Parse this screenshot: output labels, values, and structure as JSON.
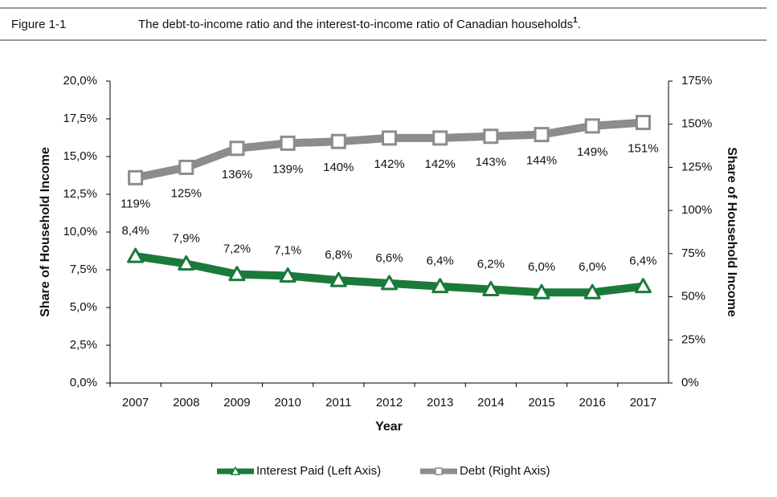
{
  "header": {
    "figure": "Figure 1-1",
    "title": "The debt-to-income ratio and the interest-to-income ratio of Canadian households",
    "footnote_mark": "1",
    "title_end": "."
  },
  "chart_data": {
    "type": "line",
    "categories": [
      "2007",
      "2008",
      "2009",
      "2010",
      "2011",
      "2012",
      "2013",
      "2014",
      "2015",
      "2016",
      "2017"
    ],
    "xlabel": "Year",
    "ylabel": "Share of Household Income",
    "y2label": "Share of Household Income",
    "ylim": [
      0,
      20
    ],
    "yticks": [
      {
        "value": 0,
        "label": "0,0%"
      },
      {
        "value": 2.5,
        "label": "2,5%"
      },
      {
        "value": 5,
        "label": "5,0%"
      },
      {
        "value": 7.5,
        "label": "7,5%"
      },
      {
        "value": 10,
        "label": "10,0%"
      },
      {
        "value": 12.5,
        "label": "12,5%"
      },
      {
        "value": 15,
        "label": "15,0%"
      },
      {
        "value": 17.5,
        "label": "17,5%"
      },
      {
        "value": 20,
        "label": "20,0%"
      }
    ],
    "y2lim": [
      0,
      175
    ],
    "y2ticks": [
      {
        "value": 0,
        "label": "0%"
      },
      {
        "value": 25,
        "label": "25%"
      },
      {
        "value": 50,
        "label": "50%"
      },
      {
        "value": 75,
        "label": "75%"
      },
      {
        "value": 100,
        "label": "100%"
      },
      {
        "value": 125,
        "label": "125%"
      },
      {
        "value": 150,
        "label": "150%"
      },
      {
        "value": 175,
        "label": "175%"
      }
    ],
    "series": [
      {
        "name": "Interest Paid (Left Axis)",
        "color": "#1b7a3a",
        "axis": "y",
        "marker": "triangle",
        "values": [
          8.4,
          7.9,
          7.2,
          7.1,
          6.8,
          6.6,
          6.4,
          6.2,
          6.0,
          6.0,
          6.4
        ],
        "value_labels": [
          "8,4%",
          "7,9%",
          "7,2%",
          "7,1%",
          "6,8%",
          "6,6%",
          "6,4%",
          "6,2%",
          "6,0%",
          "6,0%",
          "6,4%"
        ]
      },
      {
        "name": "Debt (Right Axis)",
        "color": "#8c8c8c",
        "axis": "y2",
        "marker": "square",
        "values": [
          119,
          125,
          136,
          139,
          140,
          142,
          142,
          143,
          144,
          149,
          151
        ],
        "value_labels": [
          "119%",
          "125%",
          "136%",
          "139%",
          "140%",
          "142%",
          "142%",
          "143%",
          "144%",
          "149%",
          "151%"
        ]
      }
    ]
  }
}
